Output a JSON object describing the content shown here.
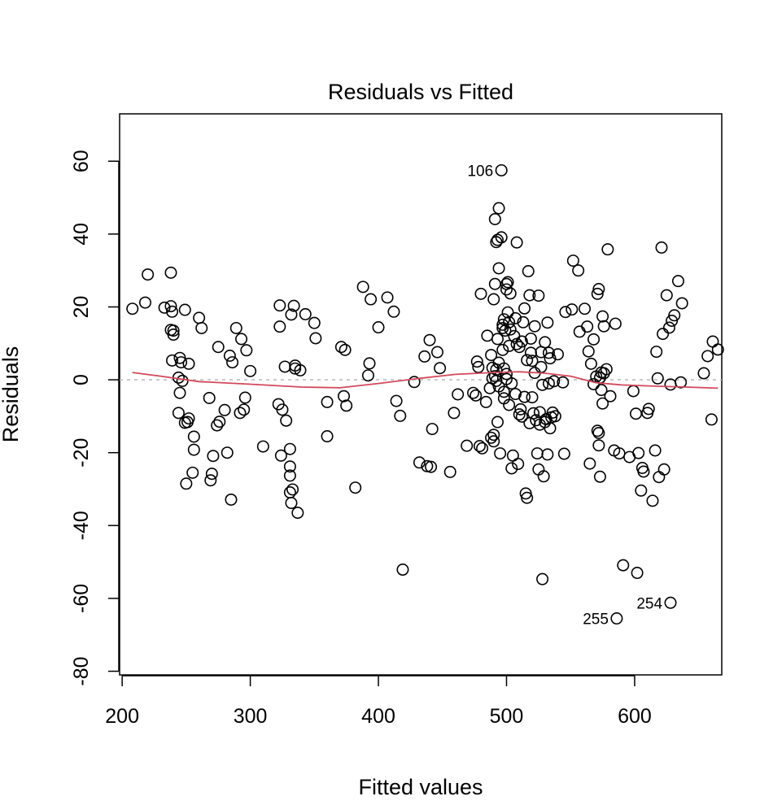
{
  "chart_data": {
    "type": "scatter",
    "title": "Residuals vs Fitted",
    "xlabel": "Fitted values",
    "ylabel": "Residuals",
    "xlim": [
      198,
      668
    ],
    "ylim": [
      -81,
      73
    ],
    "x_ticks": [
      200,
      300,
      400,
      500,
      600
    ],
    "y_ticks": [
      -80,
      -60,
      -40,
      -20,
      0,
      20,
      40,
      60
    ],
    "x_tick_labels": [
      "200",
      "300",
      "400",
      "500",
      "600"
    ],
    "y_tick_labels": [
      "-80",
      "-60",
      "-40",
      "-20",
      "0",
      "20",
      "40",
      "60"
    ],
    "reference_line": {
      "y": 0,
      "style": "dotted",
      "color": "#bdbdbd"
    },
    "smooth_color": "#d1495b",
    "point_color": "#000000",
    "grid": false,
    "legend": "none",
    "labeled_points": [
      {
        "label": "106",
        "x": 496,
        "y": 57.5,
        "side": "left"
      },
      {
        "label": "255",
        "x": 586,
        "y": -65.5,
        "side": "left"
      },
      {
        "label": "254",
        "x": 628,
        "y": -61.2,
        "side": "left"
      }
    ],
    "smooth": [
      [
        208,
        2.0
      ],
      [
        230,
        1.0
      ],
      [
        260,
        -0.5
      ],
      [
        300,
        -1.2
      ],
      [
        340,
        -2.0
      ],
      [
        370,
        -2.2
      ],
      [
        400,
        -1.0
      ],
      [
        430,
        0.3
      ],
      [
        460,
        1.5
      ],
      [
        490,
        2.0
      ],
      [
        510,
        2.2
      ],
      [
        530,
        1.8
      ],
      [
        550,
        1.0
      ],
      [
        570,
        -0.8
      ],
      [
        590,
        -1.4
      ],
      [
        620,
        -1.8
      ],
      [
        640,
        -2.0
      ],
      [
        665,
        -2.3
      ]
    ],
    "points": [
      [
        208,
        19.5
      ],
      [
        218,
        21.2
      ],
      [
        220,
        28.9
      ],
      [
        233,
        19.8
      ],
      [
        238,
        29.4
      ],
      [
        238,
        20.2
      ],
      [
        239,
        18.7
      ],
      [
        238,
        13.7
      ],
      [
        240,
        13.5
      ],
      [
        240,
        12.4
      ],
      [
        239,
        5.3
      ],
      [
        244,
        -9.1
      ],
      [
        244,
        0.6
      ],
      [
        245,
        -3.6
      ],
      [
        245,
        6.0
      ],
      [
        246,
        4.8
      ],
      [
        247,
        -0.3
      ],
      [
        249,
        19.2
      ],
      [
        249,
        -11.8
      ],
      [
        250,
        -28.5
      ],
      [
        251,
        -11.6
      ],
      [
        252,
        4.4
      ],
      [
        252,
        -10.6
      ],
      [
        255,
        -25.5
      ],
      [
        256,
        -19.2
      ],
      [
        256,
        -15.6
      ],
      [
        260,
        17.0
      ],
      [
        262,
        14.2
      ],
      [
        268,
        -5.0
      ],
      [
        269,
        -27.6
      ],
      [
        270,
        -25.8
      ],
      [
        271,
        -20.9
      ],
      [
        274,
        -12.5
      ],
      [
        275,
        9.0
      ],
      [
        276,
        -11.5
      ],
      [
        280,
        -8.3
      ],
      [
        282,
        -20.0
      ],
      [
        284,
        6.6
      ],
      [
        285,
        -32.9
      ],
      [
        286,
        4.8
      ],
      [
        289,
        14.2
      ],
      [
        292,
        -9.1
      ],
      [
        293,
        11.2
      ],
      [
        295,
        -8.2
      ],
      [
        296,
        -4.9
      ],
      [
        297,
        8.1
      ],
      [
        300,
        2.4
      ],
      [
        310,
        -18.3
      ],
      [
        322,
        -6.7
      ],
      [
        323,
        20.4
      ],
      [
        323,
        14.6
      ],
      [
        324,
        -20.8
      ],
      [
        325,
        -8.2
      ],
      [
        327,
        3.6
      ],
      [
        328,
        -11.2
      ],
      [
        331,
        -19.0
      ],
      [
        331,
        -23.8
      ],
      [
        331,
        -26.3
      ],
      [
        331,
        -30.9
      ],
      [
        332,
        -33.8
      ],
      [
        332,
        17.9
      ],
      [
        333,
        -30.1
      ],
      [
        334,
        20.3
      ],
      [
        335,
        3.9
      ],
      [
        335,
        3.1
      ],
      [
        337,
        -36.5
      ],
      [
        339,
        2.6
      ],
      [
        343,
        18.0
      ],
      [
        350,
        15.6
      ],
      [
        351,
        11.4
      ],
      [
        360,
        -6.1
      ],
      [
        360,
        -15.5
      ],
      [
        371,
        9.0
      ],
      [
        373,
        -4.5
      ],
      [
        374,
        8.2
      ],
      [
        375,
        -7.1
      ],
      [
        382,
        -29.6
      ],
      [
        388,
        25.5
      ],
      [
        392,
        1.2
      ],
      [
        393,
        4.5
      ],
      [
        394,
        22.1
      ],
      [
        400,
        14.4
      ],
      [
        407,
        22.6
      ],
      [
        412,
        18.7
      ],
      [
        414,
        -5.8
      ],
      [
        417,
        -9.9
      ],
      [
        419,
        -52.1
      ],
      [
        428,
        -0.6
      ],
      [
        432,
        -22.7
      ],
      [
        436,
        6.4
      ],
      [
        438,
        -23.7
      ],
      [
        440,
        10.9
      ],
      [
        441,
        -23.9
      ],
      [
        442,
        -13.5
      ],
      [
        446,
        7.6
      ],
      [
        448,
        3.2
      ],
      [
        456,
        -25.3
      ],
      [
        459,
        -9.1
      ],
      [
        462,
        -4.0
      ],
      [
        469,
        -18.1
      ],
      [
        474,
        -3.6
      ],
      [
        476,
        -4.3
      ],
      [
        477,
        5.0
      ],
      [
        478,
        3.5
      ],
      [
        479,
        -18.2
      ],
      [
        480,
        23.6
      ],
      [
        481,
        -18.8
      ],
      [
        484,
        -6.1
      ],
      [
        485,
        12.1
      ],
      [
        487,
        -2.3
      ],
      [
        488,
        6.8
      ],
      [
        488,
        -15.9
      ],
      [
        489,
        3.3
      ],
      [
        489,
        0.4
      ],
      [
        490,
        -16.9
      ],
      [
        490,
        -15.1
      ],
      [
        490,
        22.1
      ],
      [
        491,
        26.3
      ],
      [
        491,
        44.1
      ],
      [
        491,
        1.0
      ],
      [
        492,
        37.8
      ],
      [
        492,
        2.8
      ],
      [
        492,
        -0.3
      ],
      [
        493,
        38.4
      ],
      [
        493,
        11.2
      ],
      [
        493,
        -11.6
      ],
      [
        494,
        47.1
      ],
      [
        494,
        30.6
      ],
      [
        494,
        -1.8
      ],
      [
        494,
        4.7
      ],
      [
        495,
        -20.2
      ],
      [
        496,
        39.1
      ],
      [
        496,
        57.5
      ],
      [
        497,
        15.1
      ],
      [
        497,
        14.2
      ],
      [
        497,
        8.2
      ],
      [
        498,
        3.1
      ],
      [
        498,
        -3.3
      ],
      [
        498,
        16.6
      ],
      [
        498,
        -5.1
      ],
      [
        499,
        13.5
      ],
      [
        500,
        26.3
      ],
      [
        500,
        24.8
      ],
      [
        500,
        1.6
      ],
      [
        500,
        0.2
      ],
      [
        501,
        26.8
      ],
      [
        501,
        18.5
      ],
      [
        502,
        15.8
      ],
      [
        502,
        9.3
      ],
      [
        502,
        -6.9
      ],
      [
        503,
        23.7
      ],
      [
        503,
        13.8
      ],
      [
        504,
        -24.3
      ],
      [
        504,
        -1.0
      ],
      [
        505,
        -20.8
      ],
      [
        506,
        12.0
      ],
      [
        507,
        16.9
      ],
      [
        507,
        -3.9
      ],
      [
        508,
        37.7
      ],
      [
        508,
        9.8
      ],
      [
        509,
        -23.1
      ],
      [
        510,
        9.0
      ],
      [
        510,
        -9.5
      ],
      [
        511,
        -8.1
      ],
      [
        512,
        10.5
      ],
      [
        512,
        -10.1
      ],
      [
        513,
        15.8
      ],
      [
        514,
        -4.7
      ],
      [
        514,
        19.6
      ],
      [
        515,
        -31.2
      ],
      [
        516,
        -32.4
      ],
      [
        516,
        5.4
      ],
      [
        517,
        29.8
      ],
      [
        518,
        -11.9
      ],
      [
        518,
        23.2
      ],
      [
        519,
        7.4
      ],
      [
        519,
        11.3
      ],
      [
        520,
        5.2
      ],
      [
        520,
        -4.8
      ],
      [
        521,
        -9.2
      ],
      [
        522,
        1.9
      ],
      [
        522,
        14.7
      ],
      [
        523,
        -11.1
      ],
      [
        524,
        -20.2
      ],
      [
        525,
        -24.6
      ],
      [
        525,
        23.1
      ],
      [
        526,
        -12.3
      ],
      [
        526,
        -8.9
      ],
      [
        527,
        3.5
      ],
      [
        527,
        7.6
      ],
      [
        528,
        -54.7
      ],
      [
        528,
        -1.4
      ],
      [
        529,
        -26.5
      ],
      [
        530,
        -11.6
      ],
      [
        530,
        10.3
      ],
      [
        531,
        -10.8
      ],
      [
        532,
        15.7
      ],
      [
        532,
        -20.5
      ],
      [
        533,
        -1.0
      ],
      [
        533,
        7.4
      ],
      [
        534,
        -13.3
      ],
      [
        534,
        5.9
      ],
      [
        535,
        -10.3
      ],
      [
        536,
        -9.0
      ],
      [
        537,
        -0.4
      ],
      [
        538,
        -10.0
      ],
      [
        540,
        7.0
      ],
      [
        544,
        -0.7
      ],
      [
        545,
        -20.3
      ],
      [
        546,
        18.6
      ],
      [
        551,
        19.3
      ],
      [
        552,
        32.7
      ],
      [
        556,
        30.0
      ],
      [
        557,
        13.2
      ],
      [
        561,
        19.5
      ],
      [
        563,
        14.6
      ],
      [
        564,
        7.8
      ],
      [
        565,
        -23.0
      ],
      [
        566,
        4.4
      ],
      [
        568,
        11.1
      ],
      [
        568,
        -1.2
      ],
      [
        570,
        0.9
      ],
      [
        571,
        -14.0
      ],
      [
        571,
        23.6
      ],
      [
        572,
        -18.0
      ],
      [
        572,
        -14.6
      ],
      [
        572,
        24.9
      ],
      [
        573,
        -26.6
      ],
      [
        573,
        0.6
      ],
      [
        574,
        -2.8
      ],
      [
        574,
        2.0
      ],
      [
        575,
        -6.5
      ],
      [
        575,
        17.4
      ],
      [
        576,
        14.7
      ],
      [
        576,
        1.8
      ],
      [
        578,
        2.9
      ],
      [
        579,
        35.8
      ],
      [
        581,
        -4.5
      ],
      [
        584,
        -19.4
      ],
      [
        585,
        15.4
      ],
      [
        586,
        -65.5
      ],
      [
        588,
        -20.2
      ],
      [
        591,
        -50.9
      ],
      [
        596,
        -21.2
      ],
      [
        599,
        -3.1
      ],
      [
        601,
        -9.3
      ],
      [
        602,
        -53.0
      ],
      [
        603,
        -20.1
      ],
      [
        605,
        -30.4
      ],
      [
        606,
        -24.2
      ],
      [
        607,
        -25.2
      ],
      [
        610,
        -9.1
      ],
      [
        611,
        -8.0
      ],
      [
        614,
        -33.2
      ],
      [
        616,
        -19.4
      ],
      [
        617,
        7.7
      ],
      [
        618,
        0.4
      ],
      [
        619,
        -26.7
      ],
      [
        621,
        36.3
      ],
      [
        622,
        12.6
      ],
      [
        623,
        -24.6
      ],
      [
        625,
        23.2
      ],
      [
        627,
        14.3
      ],
      [
        628,
        -61.2
      ],
      [
        628,
        -1.3
      ],
      [
        629,
        16.2
      ],
      [
        631,
        17.7
      ],
      [
        634,
        27.1
      ],
      [
        636,
        -0.7
      ],
      [
        637,
        21.0
      ],
      [
        654,
        1.8
      ],
      [
        657,
        6.5
      ],
      [
        660,
        -10.9
      ],
      [
        661,
        10.5
      ],
      [
        665,
        8.3
      ]
    ]
  }
}
